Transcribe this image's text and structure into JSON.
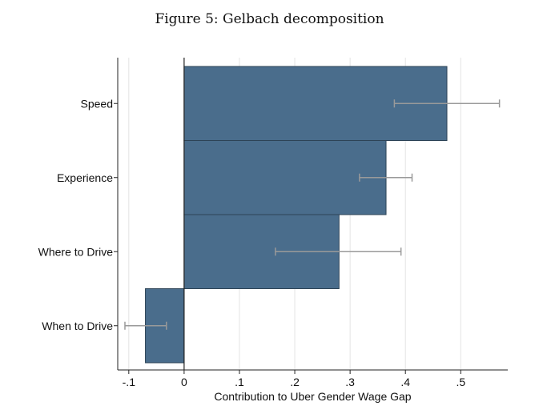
{
  "figure": {
    "title": "Figure 5: Gelbach decomposition"
  },
  "chart_data": {
    "type": "bar",
    "orientation": "horizontal",
    "categories": [
      "Speed",
      "Experience",
      "Where to Drive",
      "When to Drive"
    ],
    "values": [
      0.475,
      0.365,
      0.28,
      -0.07
    ],
    "error_low": [
      0.38,
      0.317,
      0.165,
      -0.107
    ],
    "error_high": [
      0.57,
      0.412,
      0.392,
      -0.032
    ],
    "xlabel": "Contribution to Uber Gender Wage Gap",
    "ylabel": "",
    "xlim": [
      -0.12,
      0.585
    ],
    "xticks": [
      -0.1,
      0,
      0.1,
      0.2,
      0.3,
      0.4,
      0.5
    ],
    "xtick_labels": [
      "-.1",
      "0",
      ".1",
      ".2",
      ".3",
      ".4",
      ".5"
    ],
    "grid": "vertical",
    "legend": "none",
    "colors": {
      "bar": "#4a6d8c",
      "bar_edge": "#2d4356",
      "error_bar": "#9a9a9a",
      "grid": "#e4e4e4",
      "axis": "#222222"
    }
  }
}
